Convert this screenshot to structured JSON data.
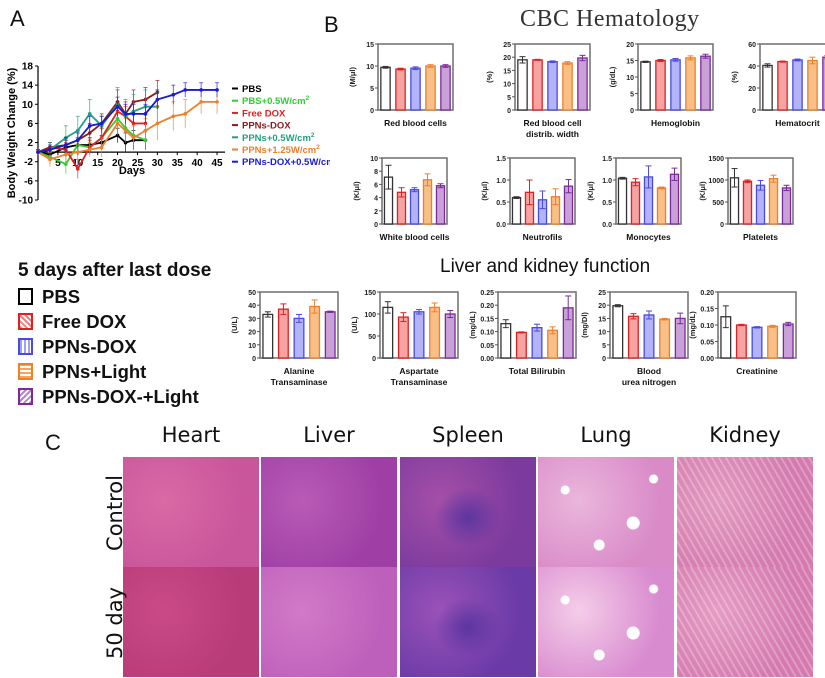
{
  "panels": {
    "a": {
      "letter": "A"
    },
    "b": {
      "letter": "B",
      "cbc_title": "CBC Hematology",
      "lk_title": "Liver and kidney function"
    },
    "c": {
      "letter": "C"
    }
  },
  "colors": {
    "PBS": "#000000",
    "PBS+0.5W/cm2": "#33cc33",
    "Free DOX": "#e02020",
    "PPNs-DOX": "#8b1a1a",
    "PPNs+0.5W/cm2": "#22a080",
    "PPNs+1.25W/cm2": "#f07f2a",
    "PPNs-DOX+0.5W/cm2": "#1a1ad0",
    "bar_pbs": "#ffffff",
    "bar_freedox": "#f08080",
    "bar_ppnsdox": "#9f9ff5",
    "bar_ppnslight": "#f5a65b",
    "bar_ppnsdoxlight": "#b585c8"
  },
  "bar_legend": {
    "title": "5 days after last dose",
    "items": [
      {
        "label": "PBS",
        "fill": "#ffffff",
        "stroke": "#000000"
      },
      {
        "label": "Free DOX",
        "fill": "#f08080",
        "stroke": "#e02020"
      },
      {
        "label": "PPNs-DOX",
        "fill": "#9f9ff5",
        "stroke": "#4a4ae0"
      },
      {
        "label": "PPNs+Light",
        "fill": "#f5a65b",
        "stroke": "#f07f2a"
      },
      {
        "label": "PPNs-DOX-+Light",
        "fill": "#b585c8",
        "stroke": "#7a2a9a"
      }
    ]
  },
  "histology": {
    "columns": [
      "Heart",
      "Liver",
      "Spleen",
      "Lung",
      "Kidney"
    ],
    "rows": [
      "Control",
      "50 day"
    ]
  },
  "chart_data": [
    {
      "type": "line",
      "id": "body-weight",
      "title": "",
      "xlabel": "Days",
      "ylabel": "Body Weight Change (%)",
      "xlim": [
        0,
        47
      ],
      "ylim": [
        -10,
        18
      ],
      "xticks": [
        5,
        10,
        15,
        20,
        25,
        30,
        35,
        40,
        45
      ],
      "yticks": [
        -10,
        -6,
        -2,
        2,
        6,
        10,
        14,
        18
      ],
      "legend_position": "right",
      "series": [
        {
          "name": "PBS",
          "x": [
            0,
            3,
            7,
            10,
            13,
            16,
            20,
            22,
            24,
            27
          ],
          "y": [
            0,
            -0.5,
            1,
            1.5,
            1.5,
            2,
            3.5,
            2,
            2.5,
            2.5
          ],
          "err": [
            0.5,
            1,
            1.5,
            1.5,
            1.5,
            1.5,
            1.5,
            2,
            2,
            2
          ]
        },
        {
          "name": "PBS+0.5W/cm2",
          "x": [
            0,
            3,
            7,
            10,
            13,
            16,
            20,
            22,
            24,
            27
          ],
          "y": [
            0,
            -1,
            -2.5,
            1.5,
            1,
            3,
            7,
            5,
            3.5,
            2.5
          ],
          "err": [
            0.5,
            1.5,
            2,
            1.5,
            1.5,
            2,
            2.5,
            2.5,
            2,
            2
          ]
        },
        {
          "name": "Free DOX",
          "x": [
            0,
            3,
            7,
            10,
            13,
            16,
            20,
            22,
            24,
            27
          ],
          "y": [
            0,
            1,
            0.5,
            -3.5,
            1,
            3,
            8.5,
            7.5,
            6,
            6
          ],
          "err": [
            0.5,
            1,
            1.5,
            2,
            1.5,
            2,
            2,
            2,
            2,
            2
          ]
        },
        {
          "name": "PPNs-DOX",
          "x": [
            0,
            3,
            7,
            10,
            13,
            16,
            20,
            22,
            24,
            27,
            30
          ],
          "y": [
            0,
            1,
            1.5,
            2.5,
            4,
            6,
            10.5,
            8,
            10.5,
            11,
            12.5
          ],
          "err": [
            0.5,
            1,
            1.5,
            2,
            2,
            2,
            2.5,
            2.5,
            2.5,
            2.5,
            2.5
          ]
        },
        {
          "name": "PPNs+0.5W/cm2",
          "x": [
            0,
            3,
            7,
            10,
            13,
            16,
            20,
            22,
            24,
            27,
            30
          ],
          "y": [
            0,
            0.5,
            3,
            4.5,
            8,
            5.5,
            10,
            7.5,
            8.5,
            9.5,
            9.5
          ],
          "err": [
            0.5,
            1.5,
            2.5,
            3,
            3,
            2,
            3.5,
            3.5,
            3.5,
            3.5,
            3
          ]
        },
        {
          "name": "PPNs+1.25W/cm2",
          "x": [
            0,
            3,
            7,
            10,
            13,
            16,
            20,
            22,
            24,
            27,
            30,
            34,
            37,
            41,
            45
          ],
          "y": [
            0,
            -1.5,
            -0.5,
            0,
            0.5,
            1,
            6,
            4.5,
            3,
            4.5,
            6,
            7.5,
            8,
            10.5,
            10.5
          ],
          "err": [
            0.5,
            1.5,
            2,
            1.5,
            1.5,
            2,
            2.5,
            2.5,
            2.5,
            2.5,
            3.5,
            3,
            3,
            2.5,
            2.5
          ]
        },
        {
          "name": "PPNs-DOX+0.5W/cm2",
          "x": [
            0,
            3,
            7,
            10,
            13,
            16,
            20,
            22,
            24,
            27,
            30,
            34,
            37,
            41,
            45
          ],
          "y": [
            0,
            0.5,
            1.5,
            2.5,
            5.5,
            6,
            9.5,
            8,
            8,
            8,
            11,
            12,
            13,
            13,
            13
          ],
          "err": [
            0.5,
            1,
            1.5,
            1.5,
            2,
            1.5,
            2,
            2,
            2,
            2,
            2,
            2,
            1.5,
            1.5,
            1.5
          ]
        }
      ]
    },
    {
      "type": "bar",
      "id": "rbc",
      "title": "Red blood cells",
      "ylabel": "(M/μl)",
      "ylim": [
        0,
        15
      ],
      "yticks": [
        0,
        5,
        10,
        15
      ],
      "categories": [
        "PBS",
        "Free DOX",
        "PPNs-DOX",
        "PPNs+Light",
        "PPNs-DOX-+Light"
      ],
      "values": [
        9.7,
        9.3,
        9.5,
        10.0,
        10.0
      ],
      "err": [
        0.2,
        0.2,
        0.3,
        0.3,
        0.3
      ]
    },
    {
      "type": "bar",
      "id": "rdw",
      "title": "Red blood cell distrib. width",
      "ylabel": "(%)",
      "ylim": [
        0,
        25
      ],
      "yticks": [
        0,
        5,
        10,
        15,
        20,
        25
      ],
      "categories": [
        "PBS",
        "Free DOX",
        "PPNs-DOX",
        "PPNs+Light",
        "PPNs-DOX-+Light"
      ],
      "values": [
        19.0,
        19.0,
        18.3,
        17.8,
        19.7
      ],
      "err": [
        1.2,
        0.2,
        0.3,
        0.5,
        1.0
      ]
    },
    {
      "type": "bar",
      "id": "hgb",
      "title": "Hemoglobin",
      "ylabel": "(g/dL)",
      "ylim": [
        0,
        20
      ],
      "yticks": [
        0,
        5,
        10,
        15,
        20
      ],
      "categories": [
        "PBS",
        "Free DOX",
        "PPNs-DOX",
        "PPNs+Light",
        "PPNs-DOX-+Light"
      ],
      "values": [
        14.6,
        15.0,
        15.2,
        15.8,
        16.3
      ],
      "err": [
        0.2,
        0.3,
        0.4,
        0.6,
        0.6
      ]
    },
    {
      "type": "bar",
      "id": "hct",
      "title": "Hematocrit",
      "ylabel": "(%)",
      "ylim": [
        0,
        60
      ],
      "yticks": [
        0,
        20,
        40,
        60
      ],
      "categories": [
        "PBS",
        "Free DOX",
        "PPNs-DOX",
        "PPNs+Light",
        "PPNs-DOX-+Light"
      ],
      "values": [
        40.5,
        44.0,
        45.5,
        45.0,
        48.0
      ],
      "err": [
        1.5,
        0.5,
        0.8,
        3.0,
        1.5
      ]
    },
    {
      "type": "bar",
      "id": "wbc",
      "title": "White blood cells",
      "ylabel": "(K/μl)",
      "ylim": [
        0,
        10
      ],
      "yticks": [
        0,
        2,
        4,
        6,
        8,
        10
      ],
      "categories": [
        "PBS",
        "Free DOX",
        "PPNs-DOX",
        "PPNs+Light",
        "PPNs-DOX-+Light"
      ],
      "values": [
        7.1,
        4.8,
        5.2,
        6.7,
        5.8
      ],
      "err": [
        1.8,
        0.7,
        0.3,
        0.9,
        0.3
      ]
    },
    {
      "type": "bar",
      "id": "neu",
      "title": "Neutrofils",
      "ylabel": "(K/μl)",
      "ylim": [
        0,
        1.5
      ],
      "yticks": [
        0.0,
        0.5,
        1.0,
        1.5
      ],
      "categories": [
        "PBS",
        "Free DOX",
        "PPNs-DOX",
        "PPNs+Light",
        "PPNs-DOX-+Light"
      ],
      "values": [
        0.6,
        0.72,
        0.55,
        0.62,
        0.86
      ],
      "err": [
        0.02,
        0.28,
        0.2,
        0.18,
        0.15
      ]
    },
    {
      "type": "bar",
      "id": "mono",
      "title": "Monocytes",
      "ylabel": "(K/μl)",
      "ylim": [
        0,
        1.5
      ],
      "yticks": [
        0.0,
        0.5,
        1.0,
        1.5
      ],
      "categories": [
        "PBS",
        "Free DOX",
        "PPNs-DOX",
        "PPNs+Light",
        "PPNs-DOX-+Light"
      ],
      "values": [
        1.04,
        0.95,
        1.07,
        0.82,
        1.13
      ],
      "err": [
        0.02,
        0.08,
        0.25,
        0.02,
        0.14
      ]
    },
    {
      "type": "bar",
      "id": "plt",
      "title": "Platelets",
      "ylabel": "(K/μl)",
      "ylim": [
        0,
        1500
      ],
      "yticks": [
        0,
        500,
        1000,
        1500
      ],
      "categories": [
        "PBS",
        "Free DOX",
        "PPNs-DOX",
        "PPNs+Light",
        "PPNs-DOX-+Light"
      ],
      "values": [
        1050,
        970,
        880,
        1030,
        820
      ],
      "err": [
        210,
        30,
        110,
        80,
        60
      ]
    },
    {
      "type": "bar",
      "id": "alt",
      "title": "Alanine Transaminase",
      "ylabel": "(U/L)",
      "ylim": [
        0,
        50
      ],
      "yticks": [
        0,
        10,
        20,
        30,
        40,
        50
      ],
      "categories": [
        "PBS",
        "Free DOX",
        "PPNs-DOX",
        "PPNs+Light",
        "PPNs-DOX-+Light"
      ],
      "values": [
        33,
        37,
        30,
        39,
        35
      ],
      "err": [
        2,
        4,
        3,
        5,
        0.5
      ]
    },
    {
      "type": "bar",
      "id": "ast",
      "title": "Aspartate Transaminase",
      "ylabel": "(U/L)",
      "ylim": [
        0,
        150
      ],
      "yticks": [
        0,
        50,
        100,
        150
      ],
      "categories": [
        "PBS",
        "Free DOX",
        "PPNs-DOX",
        "PPNs+Light",
        "PPNs-DOX-+Light"
      ],
      "values": [
        115,
        93,
        105,
        115,
        100
      ],
      "err": [
        13,
        10,
        5,
        10,
        8
      ]
    },
    {
      "type": "bar",
      "id": "tbil",
      "title": "Total Bilirubin",
      "ylabel": "(mg/dL)",
      "ylim": [
        0,
        0.25
      ],
      "yticks": [
        0.0,
        0.05,
        0.1,
        0.15,
        0.2,
        0.25
      ],
      "categories": [
        "PBS",
        "Free DOX",
        "PPNs-DOX",
        "PPNs+Light",
        "PPNs-DOX-+Light"
      ],
      "values": [
        0.13,
        0.097,
        0.115,
        0.105,
        0.19
      ],
      "err": [
        0.015,
        0.002,
        0.013,
        0.013,
        0.045
      ]
    },
    {
      "type": "bar",
      "id": "bun",
      "title": "Blood urea nitrogen",
      "ylabel": "(mg/Dl)",
      "ylim": [
        0,
        25
      ],
      "yticks": [
        0,
        5,
        10,
        15,
        20,
        25
      ],
      "categories": [
        "PBS",
        "Free DOX",
        "PPNs-DOX",
        "PPNs+Light",
        "PPNs-DOX-+Light"
      ],
      "values": [
        19.8,
        15.8,
        16.3,
        14.7,
        15.0
      ],
      "err": [
        0.4,
        1.0,
        1.5,
        0.3,
        2.0
      ]
    },
    {
      "type": "bar",
      "id": "crea",
      "title": "Creatinine",
      "ylabel": "(mg/dL)",
      "ylim": [
        0,
        0.2
      ],
      "yticks": [
        0.0,
        0.05,
        0.1,
        0.15,
        0.2
      ],
      "categories": [
        "PBS",
        "Free DOX",
        "PPNs-DOX",
        "PPNs+Light",
        "PPNs-DOX-+Light"
      ],
      "values": [
        0.125,
        0.1,
        0.093,
        0.096,
        0.103
      ],
      "err": [
        0.033,
        0.002,
        0.002,
        0.003,
        0.005
      ]
    }
  ]
}
